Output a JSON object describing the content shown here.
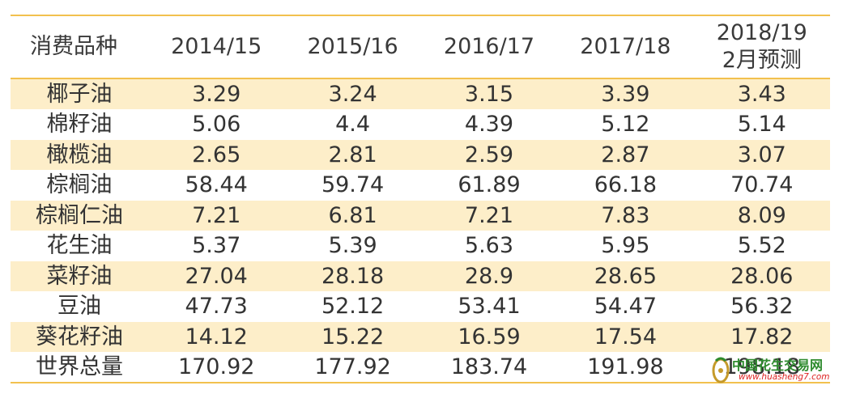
{
  "chart_data": {
    "type": "table",
    "columns": [
      "消费品种",
      "2014/15",
      "2015/16",
      "2016/17",
      "2017/18",
      "2018/19\n2月预测"
    ],
    "header_lines": [
      [
        "消费品种"
      ],
      [
        "2014/15"
      ],
      [
        "2015/16"
      ],
      [
        "2016/17"
      ],
      [
        "2017/18"
      ],
      [
        "2018/19",
        "2月预测"
      ]
    ],
    "rows": [
      [
        "椰子油",
        "3.29",
        "3.24",
        "3.15",
        "3.39",
        "3.43"
      ],
      [
        "棉籽油",
        "5.06",
        "4.4",
        "4.39",
        "5.12",
        "5.14"
      ],
      [
        "橄榄油",
        "2.65",
        "2.81",
        "2.59",
        "2.87",
        "3.07"
      ],
      [
        "棕榈油",
        "58.44",
        "59.74",
        "61.89",
        "66.18",
        "70.74"
      ],
      [
        "棕榈仁油",
        "7.21",
        "6.81",
        "7.21",
        "7.83",
        "8.09"
      ],
      [
        "花生油",
        "5.37",
        "5.39",
        "5.63",
        "5.95",
        "5.52"
      ],
      [
        "菜籽油",
        "27.04",
        "28.18",
        "28.9",
        "28.65",
        "28.06"
      ],
      [
        "豆油",
        "47.73",
        "52.12",
        "53.41",
        "54.47",
        "56.32"
      ],
      [
        "葵花籽油",
        "14.12",
        "15.22",
        "16.59",
        "17.54",
        "17.82"
      ],
      [
        "世界总量",
        "170.92",
        "177.92",
        "183.74",
        "191.98",
        "198.18"
      ]
    ]
  },
  "colors": {
    "band": "#fdeec9",
    "rule": "#f2c14e",
    "text": "#333333"
  },
  "watermark": {
    "text": "中国花生交易网",
    "url": "www.huasheng7.com",
    "logo_icon": "peanut-logo-icon"
  }
}
